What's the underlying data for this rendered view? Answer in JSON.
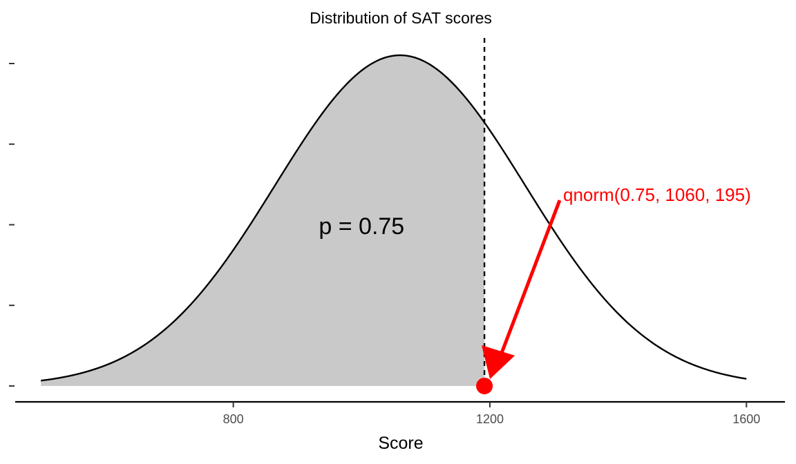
{
  "chart_data": {
    "type": "area",
    "title": "Distribution of SAT scores",
    "xlabel": "Score",
    "ylabel": "",
    "distribution": {
      "family": "normal",
      "mean": 1060,
      "sd": 195
    },
    "x_range": [
      500,
      1600
    ],
    "xlim": [
      460,
      1660
    ],
    "x_ticks": [
      800,
      1200,
      1600
    ],
    "y_tick_count": 5,
    "y_tick_labels_shown": false,
    "shaded_up_to": 1191.5,
    "cutoff": 1191.5,
    "probability_label": "p = 0.75",
    "annotation": {
      "text": "qnorm(0.75, 1060, 195)",
      "arrow_to_x": 1191.5
    },
    "colors": {
      "fill": "#c9c9c9",
      "curve": "#000000",
      "annotation": "#ff0000"
    },
    "grid": false,
    "legend": "none"
  }
}
